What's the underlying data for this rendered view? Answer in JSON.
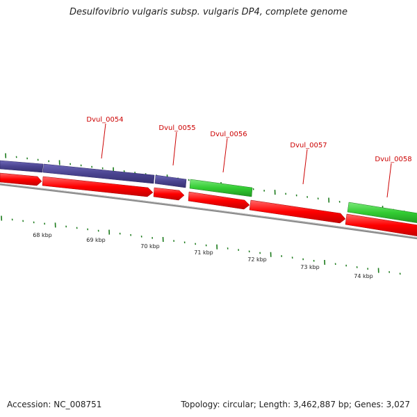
{
  "title": "Desulfovibrio vulgaris subsp. vulgaris DP4, complete genome",
  "footer": {
    "accession": "Accession: NC_008751",
    "summary": "Topology: circular; Length: 3,462,887 bp; Genes: 3,027"
  },
  "genes": [
    {
      "label": "Dvul_0054"
    },
    {
      "label": "Dvul_0055"
    },
    {
      "label": "Dvul_0056"
    },
    {
      "label": "Dvul_0057"
    },
    {
      "label": "Dvul_0058"
    }
  ],
  "kbp_ticks": [
    {
      "label": "68 kbp"
    },
    {
      "label": "69 kbp"
    },
    {
      "label": "70 kbp"
    },
    {
      "label": "71 kbp"
    },
    {
      "label": "72 kbp"
    },
    {
      "label": "73 kbp"
    },
    {
      "label": "74 kbp"
    }
  ],
  "colors": {
    "cds_forward": "#ff0000",
    "blue_feature": "#4a4490",
    "green_feature": "#33cc33",
    "tick_green": "#1a7a1a",
    "backbone": "#888888",
    "label_red": "#cc0000"
  }
}
